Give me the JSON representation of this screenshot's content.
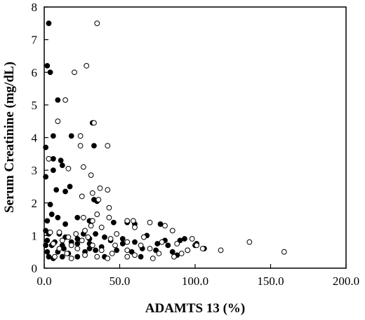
{
  "chart_data": {
    "type": "scatter",
    "xlabel": "ADAMTS 13 (%)",
    "ylabel": "Serum Creatinine (mg/dL)",
    "xlim": [
      0,
      200
    ],
    "ylim": [
      0,
      8
    ],
    "x_ticks": [
      "0.0",
      "50.0",
      "100.0",
      "150.0",
      "200.0"
    ],
    "y_ticks": [
      "0",
      "1",
      "2",
      "3",
      "4",
      "5",
      "6",
      "7",
      "8"
    ],
    "grid": false,
    "series": [
      {
        "marker": "filled-circle",
        "points": [
          [
            3,
            7.5
          ],
          [
            2,
            6.2
          ],
          [
            4,
            6
          ],
          [
            9,
            5.15
          ],
          [
            32,
            4.45
          ],
          [
            6,
            4.05
          ],
          [
            18,
            4.05
          ],
          [
            33,
            3.75
          ],
          [
            1,
            3.7
          ],
          [
            11,
            3.3
          ],
          [
            12,
            3.15
          ],
          [
            6,
            3.35
          ],
          [
            6,
            3.0
          ],
          [
            1,
            2.8
          ],
          [
            17,
            2.5
          ],
          [
            8,
            2.4
          ],
          [
            14,
            2.35
          ],
          [
            33,
            2.1
          ],
          [
            35,
            2.05
          ],
          [
            4,
            1.95
          ],
          [
            22,
            1.55
          ],
          [
            5,
            1.65
          ],
          [
            9,
            1.55
          ],
          [
            2,
            1.45
          ],
          [
            14,
            1.35
          ],
          [
            30,
            1.45
          ],
          [
            46,
            1.4
          ],
          [
            55,
            1.4
          ],
          [
            60,
            1.35
          ],
          [
            77,
            1.35
          ],
          [
            1,
            1.15
          ],
          [
            3,
            1.05
          ],
          [
            10,
            1.05
          ],
          [
            26,
            1.05
          ],
          [
            34,
            1.05
          ],
          [
            14,
            0.95
          ],
          [
            22,
            0.9
          ],
          [
            2,
            0.85
          ],
          [
            7,
            0.8
          ],
          [
            18,
            0.8
          ],
          [
            30,
            0.9
          ],
          [
            44,
            0.85
          ],
          [
            60,
            0.8
          ],
          [
            75,
            0.75
          ],
          [
            90,
            0.85
          ],
          [
            1,
            0.7
          ],
          [
            5,
            0.7
          ],
          [
            12,
            0.7
          ],
          [
            22,
            0.75
          ],
          [
            30,
            0.6
          ],
          [
            38,
            0.65
          ],
          [
            52,
            0.75
          ],
          [
            65,
            0.6
          ],
          [
            82,
            0.7
          ],
          [
            100,
            0.7
          ],
          [
            2,
            0.5
          ],
          [
            9,
            0.5
          ],
          [
            16,
            0.45
          ],
          [
            27,
            0.5
          ],
          [
            34,
            0.55
          ],
          [
            48,
            0.55
          ],
          [
            58,
            0.5
          ],
          [
            74,
            0.55
          ],
          [
            85,
            0.5
          ],
          [
            95,
            0.55
          ],
          [
            106,
            0.6
          ],
          [
            3,
            0.35
          ],
          [
            12,
            0.35
          ],
          [
            22,
            0.35
          ],
          [
            6,
            0.3
          ],
          [
            40,
            0.35
          ],
          [
            64,
            0.35
          ],
          [
            88,
            0.4
          ],
          [
            52,
            0.9
          ],
          [
            68,
            1.0
          ],
          [
            93,
            0.9
          ],
          [
            40,
            0.95
          ],
          [
            30,
            0.75
          ],
          [
            13,
            0.6
          ],
          [
            80,
            0.85
          ],
          [
            101,
            0.75
          ]
        ]
      },
      {
        "marker": "open-circle",
        "points": [
          [
            35,
            7.5
          ],
          [
            20,
            6.0
          ],
          [
            28,
            6.2
          ],
          [
            14,
            5.15
          ],
          [
            9,
            4.5
          ],
          [
            33,
            4.45
          ],
          [
            24,
            4.05
          ],
          [
            42,
            3.75
          ],
          [
            24,
            3.75
          ],
          [
            3,
            3.35
          ],
          [
            26,
            3.1
          ],
          [
            16,
            3.05
          ],
          [
            31,
            2.85
          ],
          [
            37,
            2.45
          ],
          [
            42,
            2.4
          ],
          [
            32,
            2.3
          ],
          [
            25,
            2.2
          ],
          [
            36,
            2.1
          ],
          [
            43,
            1.85
          ],
          [
            35,
            1.65
          ],
          [
            26,
            1.55
          ],
          [
            43,
            1.55
          ],
          [
            32,
            1.45
          ],
          [
            55,
            1.45
          ],
          [
            59,
            1.45
          ],
          [
            70,
            1.4
          ],
          [
            80,
            1.3
          ],
          [
            31,
            1.3
          ],
          [
            38,
            1.25
          ],
          [
            60,
            1.25
          ],
          [
            85,
            1.15
          ],
          [
            27,
            1.15
          ],
          [
            10,
            1.1
          ],
          [
            4,
            1.1
          ],
          [
            21,
            1.05
          ],
          [
            48,
            1.05
          ],
          [
            16,
            0.95
          ],
          [
            29,
            0.95
          ],
          [
            44,
            0.9
          ],
          [
            66,
            0.95
          ],
          [
            98,
            0.9
          ],
          [
            12,
            0.85
          ],
          [
            25,
            0.85
          ],
          [
            55,
            0.8
          ],
          [
            78,
            0.8
          ],
          [
            136,
            0.8
          ],
          [
            6,
            0.75
          ],
          [
            18,
            0.7
          ],
          [
            32,
            0.7
          ],
          [
            47,
            0.7
          ],
          [
            64,
            0.7
          ],
          [
            88,
            0.75
          ],
          [
            101,
            0.7
          ],
          [
            117,
            0.55
          ],
          [
            159,
            0.5
          ],
          [
            10,
            0.6
          ],
          [
            22,
            0.6
          ],
          [
            38,
            0.55
          ],
          [
            55,
            0.55
          ],
          [
            70,
            0.6
          ],
          [
            95,
            0.55
          ],
          [
            15,
            0.45
          ],
          [
            27,
            0.4
          ],
          [
            45,
            0.45
          ],
          [
            60,
            0.4
          ],
          [
            76,
            0.45
          ],
          [
            91,
            0.45
          ],
          [
            7,
            0.35
          ],
          [
            35,
            0.35
          ],
          [
            55,
            0.35
          ],
          [
            72,
            0.3
          ],
          [
            86,
            0.35
          ],
          [
            18,
            0.3
          ],
          [
            42,
            0.3
          ],
          [
            105,
            0.6
          ]
        ]
      }
    ]
  }
}
